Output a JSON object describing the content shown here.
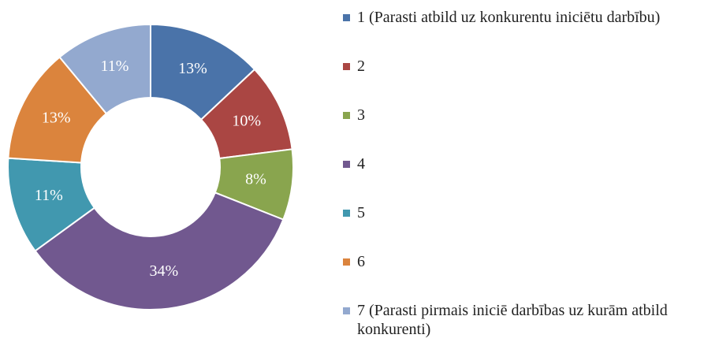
{
  "chart_data": {
    "type": "donut",
    "categories": [
      "1 (Parasti atbild uz konkurentu iniciētu darbību)",
      "2",
      "3",
      "4",
      "5",
      "6",
      "7 (Parasti pirmais iniciē darbības uz kurām atbild konkurenti)"
    ],
    "values": [
      13,
      10,
      8,
      34,
      11,
      13,
      11
    ],
    "value_labels": [
      "13%",
      "10%",
      "8%",
      "34%",
      "11%",
      "13%",
      "11%"
    ],
    "colors": [
      "#4a73a9",
      "#aa4643",
      "#89a54e",
      "#71588f",
      "#4198af",
      "#db843d",
      "#93a9cf"
    ]
  }
}
